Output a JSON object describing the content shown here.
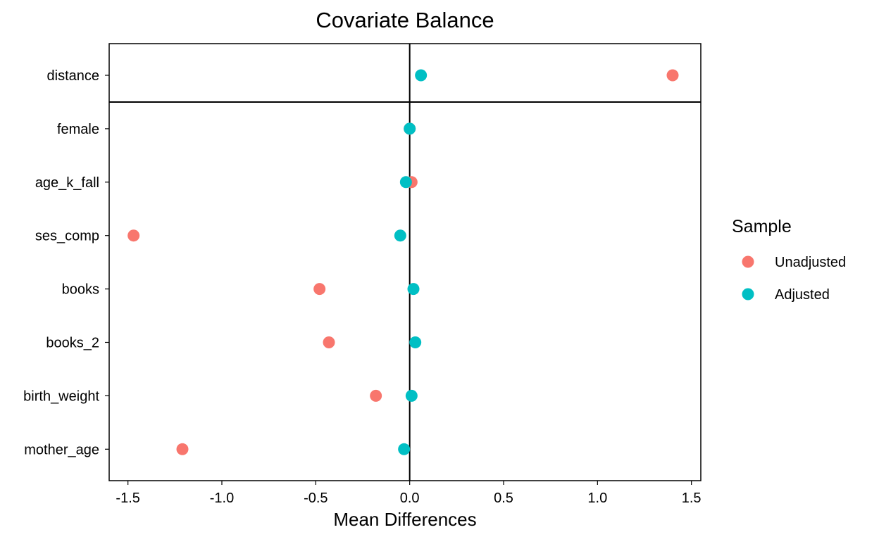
{
  "chart_data": {
    "type": "scatter",
    "title": "Covariate Balance",
    "xlabel": "Mean Differences",
    "ylabel": "",
    "xlim": [
      -1.6,
      1.55
    ],
    "x_ticks": [
      -1.5,
      -1.0,
      -0.5,
      0.0,
      0.5,
      1.0,
      1.5
    ],
    "x_tick_labels": [
      "-1.5",
      "-1.0",
      "-0.5",
      "0.0",
      "0.5",
      "1.0",
      "1.5"
    ],
    "categories": [
      "distance",
      "female",
      "age_k_fall",
      "ses_comp",
      "books",
      "books_2",
      "birth_weight",
      "mother_age"
    ],
    "grid": false,
    "reference_line_x": 0,
    "separator_after_category": "distance",
    "legend": {
      "title": "Sample",
      "placement": "right"
    },
    "series": [
      {
        "name": "Unadjusted",
        "color": "#F8766D",
        "values": [
          1.4,
          0.0,
          0.01,
          -1.47,
          -0.48,
          -0.43,
          -0.18,
          -1.21
        ]
      },
      {
        "name": "Adjusted",
        "color": "#00BFC4",
        "values": [
          0.06,
          0.0,
          -0.02,
          -0.05,
          0.02,
          0.03,
          0.01,
          -0.03
        ]
      }
    ]
  }
}
